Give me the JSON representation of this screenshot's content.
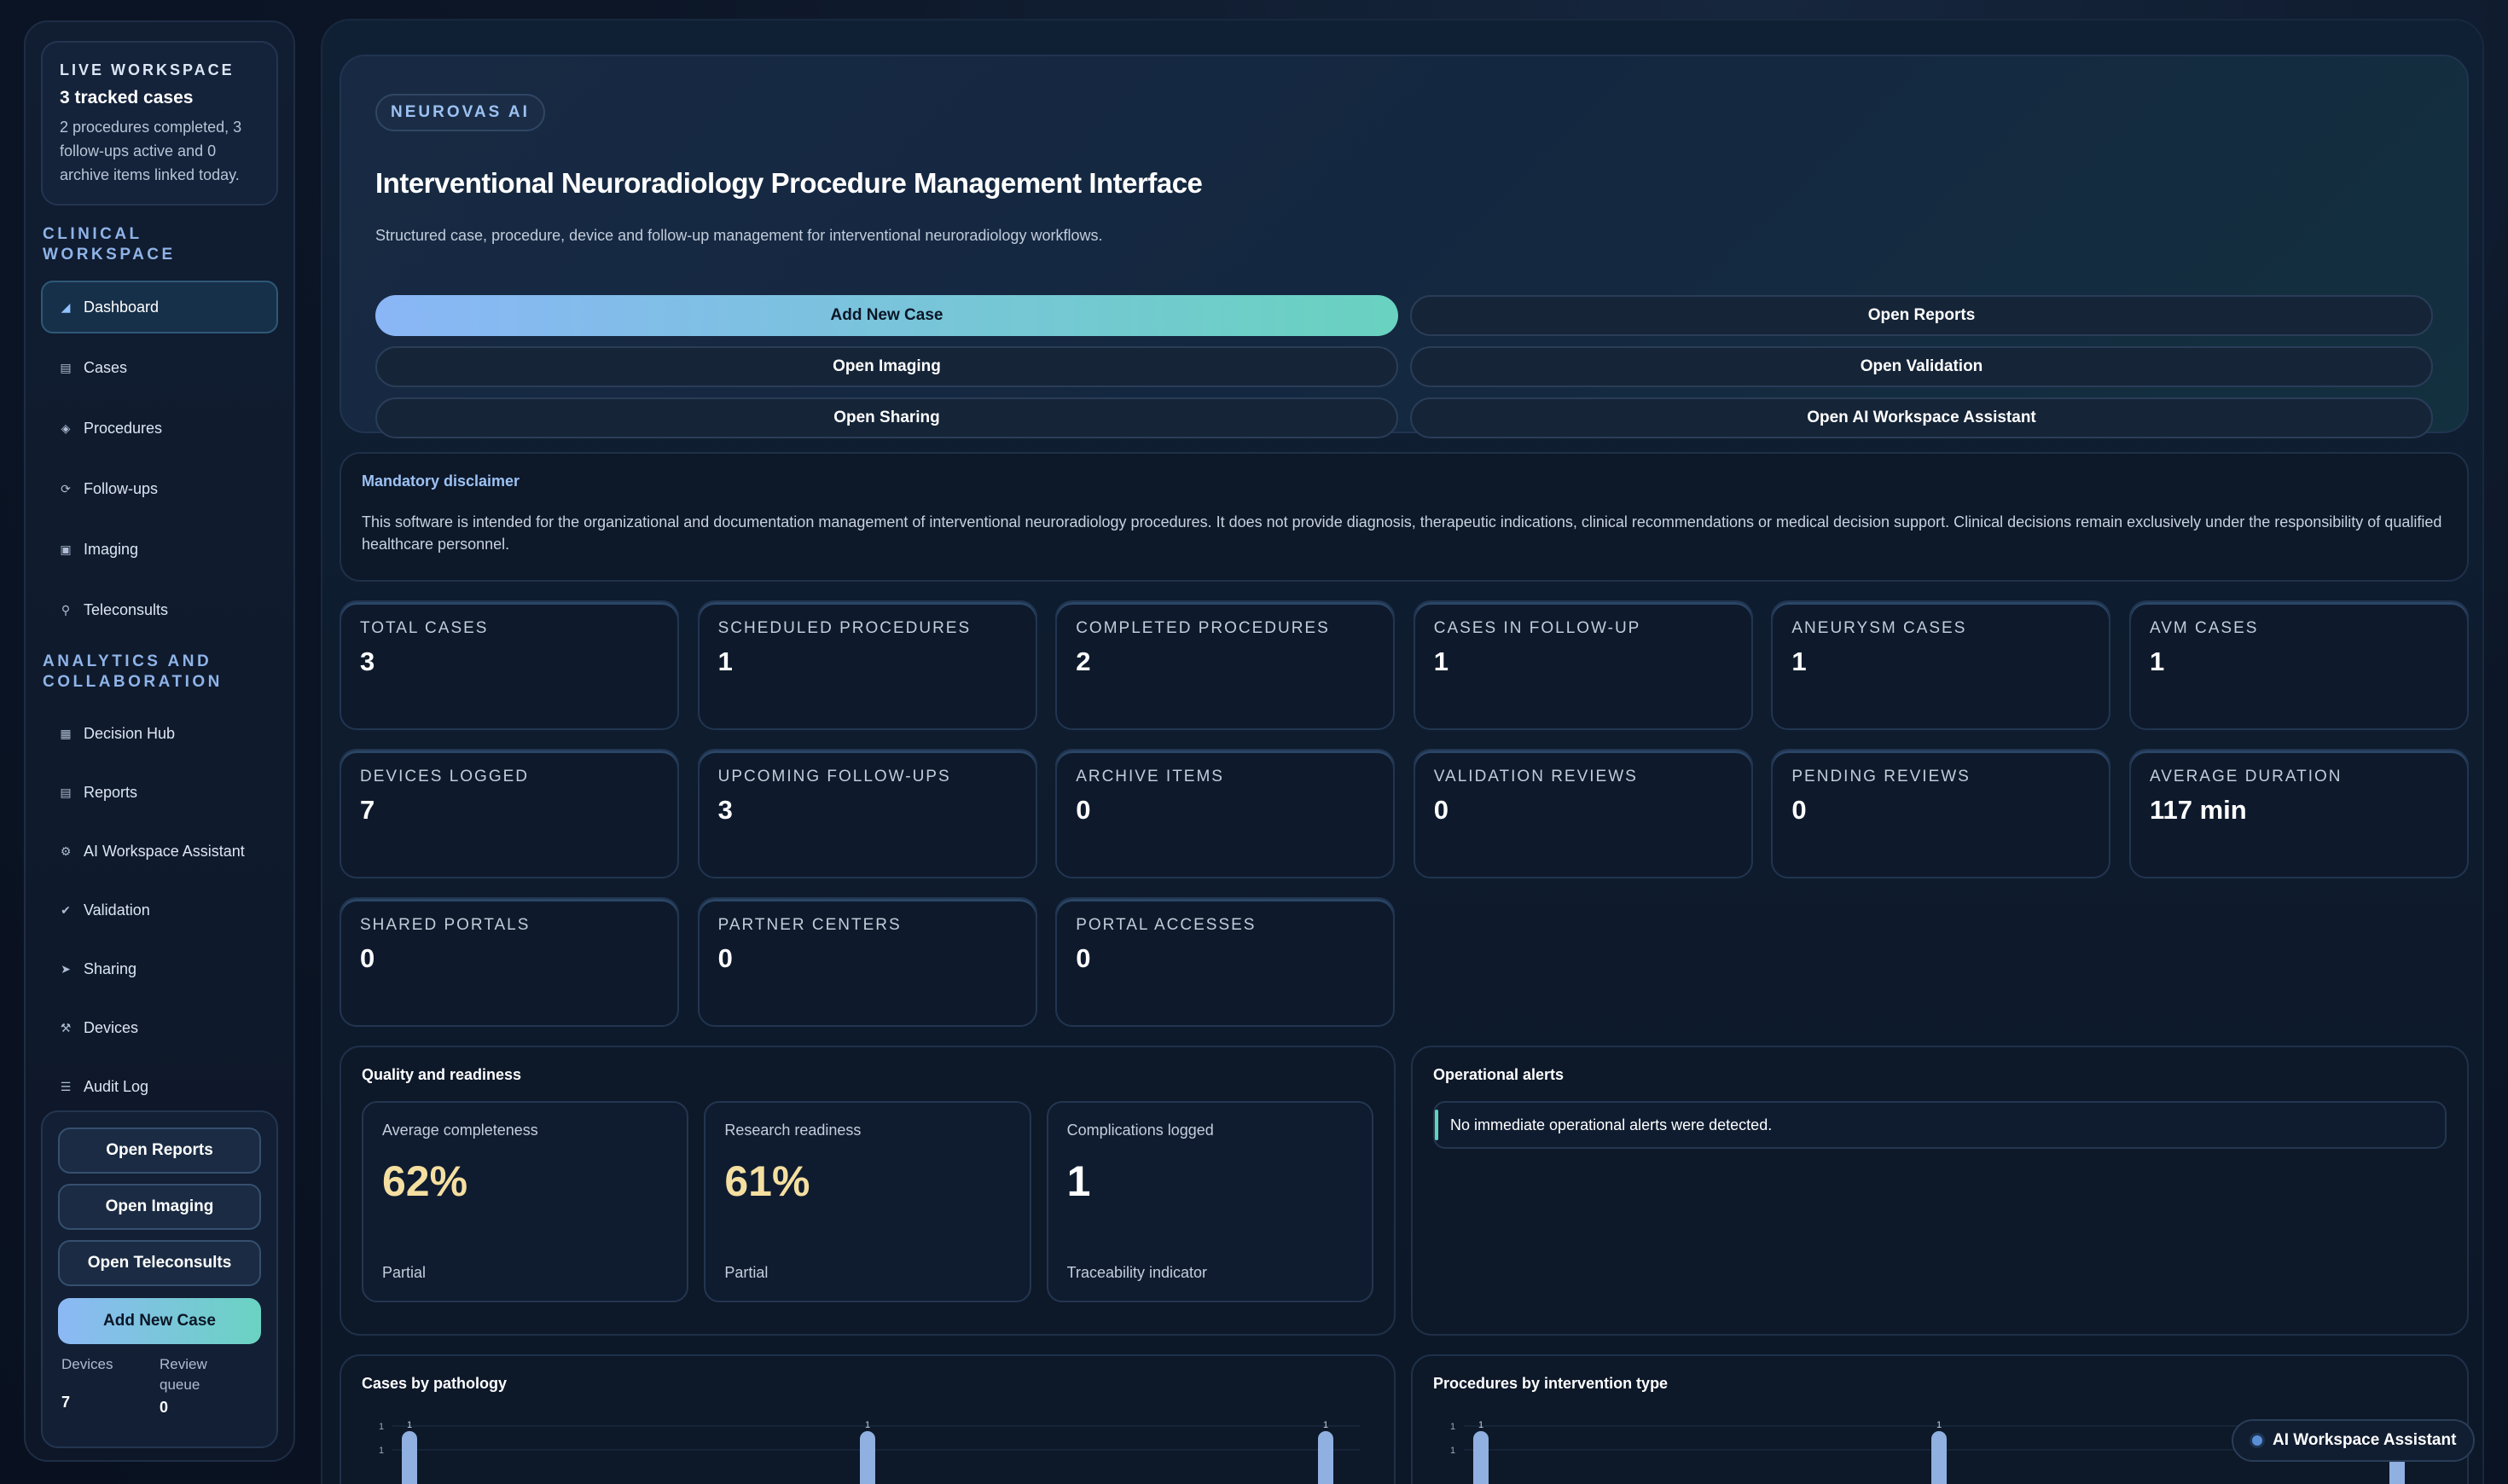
{
  "sidebar": {
    "live": {
      "kicker": "LIVE WORKSPACE",
      "title": "3 tracked cases",
      "desc": "2 procedures completed, 3 follow-ups active and 0 archive items linked today."
    },
    "section_clinical": "CLINICAL WORKSPACE",
    "clinical_items": [
      {
        "label": "Dashboard",
        "icon": "chart-icon",
        "active": true
      },
      {
        "label": "Cases",
        "icon": "folder-icon"
      },
      {
        "label": "Procedures",
        "icon": "diamond-icon"
      },
      {
        "label": "Follow-ups",
        "icon": "refresh-icon"
      },
      {
        "label": "Imaging",
        "icon": "image-icon"
      },
      {
        "label": "Teleconsults",
        "icon": "microphone-icon"
      }
    ],
    "section_analytics": "ANALYTICS AND COLLABORATION",
    "analytics_items": [
      {
        "label": "Decision Hub",
        "icon": "grid-icon"
      },
      {
        "label": "Reports",
        "icon": "document-icon"
      },
      {
        "label": "AI Workspace Assistant",
        "icon": "robot-icon"
      },
      {
        "label": "Validation",
        "icon": "check-circle-icon"
      },
      {
        "label": "Sharing",
        "icon": "share-icon"
      },
      {
        "label": "Devices",
        "icon": "wrench-icon"
      },
      {
        "label": "Audit Log",
        "icon": "log-icon"
      }
    ],
    "quick": {
      "open_reports": "Open Reports",
      "open_imaging": "Open Imaging",
      "open_teleconsults": "Open Teleconsults",
      "add_new_case": "Add New Case",
      "devices_label": "Devices",
      "devices_value": "7",
      "review_label": "Review queue",
      "review_value": "0"
    }
  },
  "hero": {
    "tag": "NEUROVAS AI",
    "title": "Interventional Neuroradiology Procedure Management Interface",
    "subtitle": "Structured case, procedure, device and follow-up management for interventional neuroradiology workflows.",
    "buttons": {
      "add_new_case": "Add New Case",
      "open_reports": "Open Reports",
      "open_imaging": "Open Imaging",
      "open_validation": "Open Validation",
      "open_sharing": "Open Sharing",
      "open_ai_assistant": "Open AI Workspace Assistant"
    }
  },
  "disclaimer": {
    "title": "Mandatory disclaimer",
    "text": "This software is intended for the organizational and documentation management of interventional neuroradiology procedures. It does not provide diagnosis, therapeutic indications, clinical recommendations or medical decision support. Clinical decisions remain exclusively under the responsibility of qualified healthcare personnel."
  },
  "stats": [
    {
      "label": "TOTAL CASES",
      "value": "3"
    },
    {
      "label": "SCHEDULED PROCEDURES",
      "value": "1"
    },
    {
      "label": "COMPLETED PROCEDURES",
      "value": "2"
    },
    {
      "label": "CASES IN FOLLOW-UP",
      "value": "1"
    },
    {
      "label": "ANEURYSM CASES",
      "value": "1"
    },
    {
      "label": "AVM CASES",
      "value": "1"
    },
    {
      "label": "DEVICES LOGGED",
      "value": "7"
    },
    {
      "label": "UPCOMING FOLLOW-UPS",
      "value": "3"
    },
    {
      "label": "ARCHIVE ITEMS",
      "value": "0"
    },
    {
      "label": "VALIDATION REVIEWS",
      "value": "0"
    },
    {
      "label": "PENDING REVIEWS",
      "value": "0"
    },
    {
      "label": "AVERAGE DURATION",
      "value": "117 min"
    },
    {
      "label": "SHARED PORTALS",
      "value": "0"
    },
    {
      "label": "PARTNER CENTERS",
      "value": "0"
    },
    {
      "label": "PORTAL ACCESSES",
      "value": "0"
    }
  ],
  "quality": {
    "title": "Quality and readiness",
    "cards": [
      {
        "label": "Average completeness",
        "value": "62%",
        "foot": "Partial"
      },
      {
        "label": "Research readiness",
        "value": "61%",
        "foot": "Partial"
      },
      {
        "label": "Complications logged",
        "value": "1",
        "foot": "Traceability indicator"
      }
    ]
  },
  "alerts": {
    "title": "Operational alerts",
    "message": "No immediate operational alerts were detected."
  },
  "charts": {
    "pathology_title": "Cases by pathology",
    "intervention_title": "Procedures by intervention type"
  },
  "chart_data": [
    {
      "type": "bar",
      "title": "Cases by pathology",
      "values": [
        1,
        1,
        1
      ],
      "ylim": [
        0,
        1
      ],
      "tick_labels": [
        "1",
        "1"
      ],
      "bar_labels": [
        "1",
        "1",
        "1"
      ]
    },
    {
      "type": "bar",
      "title": "Procedures by intervention type",
      "values": [
        1,
        1,
        1
      ],
      "ylim": [
        0,
        1
      ],
      "tick_labels": [
        "1",
        "1"
      ],
      "bar_labels": [
        "1",
        "1",
        "1"
      ]
    }
  ],
  "assistant_pill": "AI Workspace Assistant",
  "colors": {
    "accent_start": "#8ab6f7",
    "accent_end": "#69d2c0",
    "warm_value": "#f5dfa0",
    "bar": "#8fb0e0"
  }
}
